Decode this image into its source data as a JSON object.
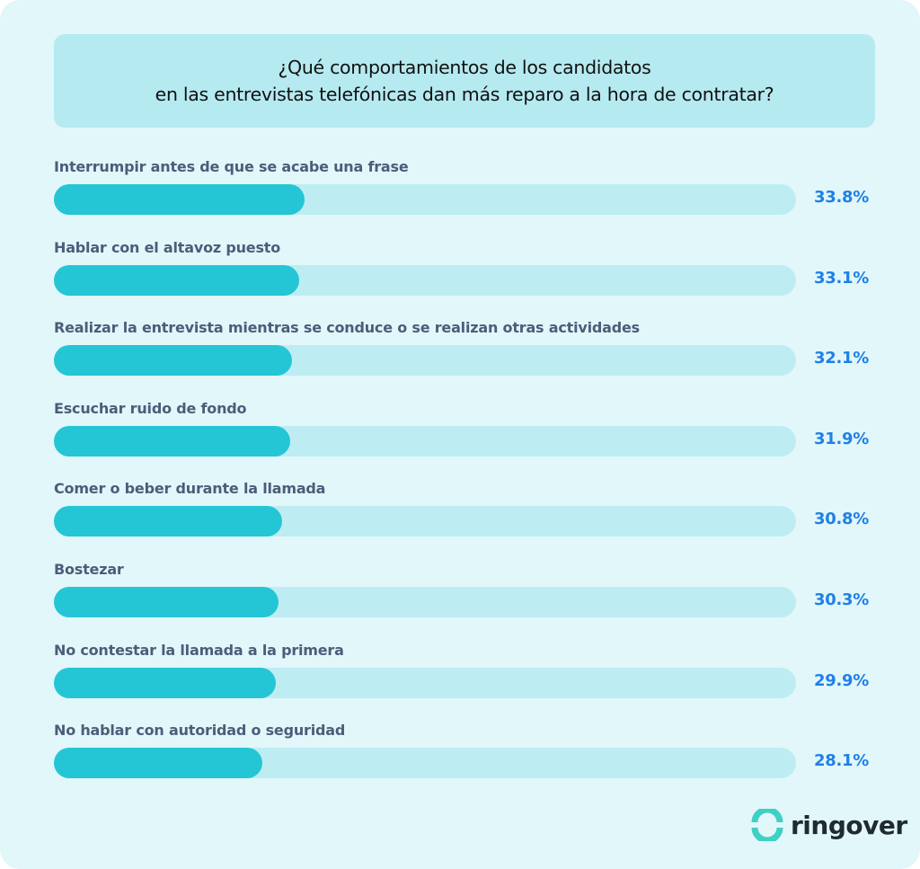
{
  "chart_data": {
    "type": "bar",
    "orientation": "horizontal",
    "title": "¿Qué comportamientos de los candidatos en las entrevistas telefónicas dan más reparo a la hora de contratar?",
    "title_lines": [
      "¿Qué comportamientos de los candidatos",
      "en las entrevistas telefónicas dan más reparo a la hora de contratar?"
    ],
    "categories": [
      "Interrumpir antes de que se acabe una frase",
      "Hablar con el altavoz puesto",
      "Realizar la entrevista mientras se conduce o se realizan otras actividades",
      "Escuchar ruido de fondo",
      "Comer o beber durante la llamada",
      "Bostezar",
      "No contestar la llamada a la primera",
      "No hablar con autoridad o seguridad"
    ],
    "values": [
      33.8,
      33.1,
      32.1,
      31.9,
      30.8,
      30.3,
      29.9,
      28.1
    ],
    "value_labels": [
      "33.8%",
      "33.1%",
      "32.1%",
      "31.9%",
      "30.8%",
      "30.3%",
      "29.9%",
      "28.1%"
    ],
    "xlim": [
      0,
      100
    ],
    "unit": "%",
    "grid": false,
    "colors": {
      "fill": "#24c6d5",
      "track": "#bdedf2",
      "value_text": "#2080e6"
    }
  },
  "brand": {
    "name": "ringover",
    "logo_icon": "ring-logo-icon",
    "color": "#3fd0c4"
  }
}
